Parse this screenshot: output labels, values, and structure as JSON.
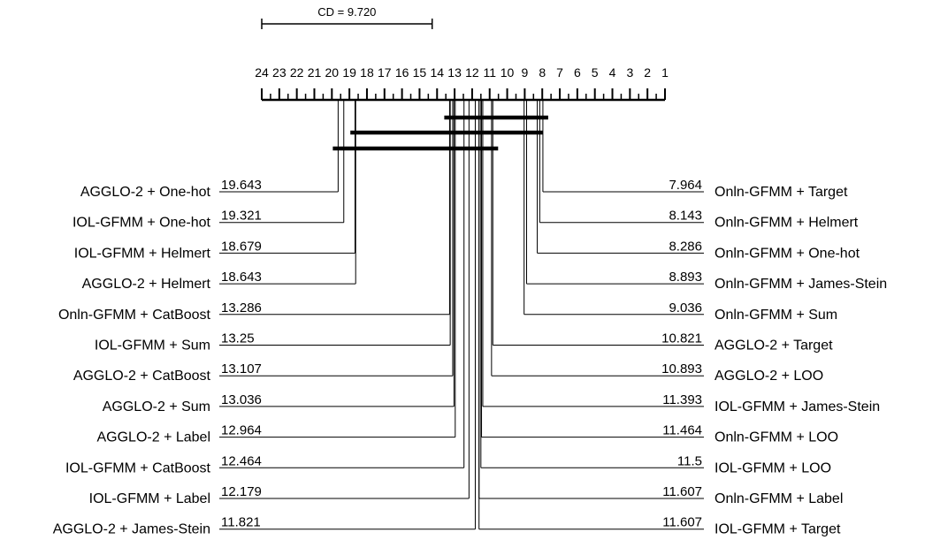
{
  "chart_data": {
    "type": "critical-difference",
    "cd_label": "CD = 9.720",
    "cd_value": 9.72,
    "axis": {
      "min": 1,
      "max": 24,
      "reversed": true,
      "ticks": [
        "24",
        "23",
        "22",
        "21",
        "20",
        "19",
        "18",
        "17",
        "16",
        "15",
        "14",
        "13",
        "12",
        "11",
        "10",
        "9",
        "8",
        "7",
        "6",
        "5",
        "4",
        "3",
        "2",
        "1"
      ]
    },
    "left_methods": [
      {
        "name": "AGGLO-2 + One-hot",
        "rank_label": "19.643",
        "rank": 19.643
      },
      {
        "name": "IOL-GFMM + One-hot",
        "rank_label": "19.321",
        "rank": 19.321
      },
      {
        "name": "IOL-GFMM + Helmert",
        "rank_label": "18.679",
        "rank": 18.679
      },
      {
        "name": "AGGLO-2 + Helmert",
        "rank_label": "18.643",
        "rank": 18.643
      },
      {
        "name": "Onln-GFMM + CatBoost",
        "rank_label": "13.286",
        "rank": 13.286
      },
      {
        "name": "IOL-GFMM + Sum",
        "rank_label": "13.25",
        "rank": 13.25
      },
      {
        "name": "AGGLO-2 + CatBoost",
        "rank_label": "13.107",
        "rank": 13.107
      },
      {
        "name": "AGGLO-2 + Sum",
        "rank_label": "13.036",
        "rank": 13.036
      },
      {
        "name": "AGGLO-2 + Label",
        "rank_label": "12.964",
        "rank": 12.964
      },
      {
        "name": "IOL-GFMM + CatBoost",
        "rank_label": "12.464",
        "rank": 12.464
      },
      {
        "name": "IOL-GFMM + Label",
        "rank_label": "12.179",
        "rank": 12.179
      },
      {
        "name": "AGGLO-2 + James-Stein",
        "rank_label": "11.821",
        "rank": 11.821
      }
    ],
    "right_methods": [
      {
        "name": "Onln-GFMM + Target",
        "rank_label": "7.964",
        "rank": 7.964
      },
      {
        "name": "Onln-GFMM + Helmert",
        "rank_label": "8.143",
        "rank": 8.143
      },
      {
        "name": "Onln-GFMM + One-hot",
        "rank_label": "8.286",
        "rank": 8.286
      },
      {
        "name": "Onln-GFMM + James-Stein",
        "rank_label": "8.893",
        "rank": 8.893
      },
      {
        "name": "Onln-GFMM + Sum",
        "rank_label": "9.036",
        "rank": 9.036
      },
      {
        "name": "AGGLO-2 + Target",
        "rank_label": "10.821",
        "rank": 10.821
      },
      {
        "name": "AGGLO-2 + LOO",
        "rank_label": "10.893",
        "rank": 10.893
      },
      {
        "name": "IOL-GFMM + James-Stein",
        "rank_label": "11.393",
        "rank": 11.393
      },
      {
        "name": "Onln-GFMM + LOO",
        "rank_label": "11.464",
        "rank": 11.464
      },
      {
        "name": "IOL-GFMM + LOO",
        "rank_label": "11.5",
        "rank": 11.5
      },
      {
        "name": "Onln-GFMM + Label",
        "rank_label": "11.607",
        "rank": 11.607
      },
      {
        "name": "IOL-GFMM + Target",
        "rank_label": "11.607",
        "rank": 11.607
      }
    ],
    "clique_bars": [
      {
        "from": 7.964,
        "to": 13.286
      },
      {
        "from": 8.286,
        "to": 18.643
      },
      {
        "from": 10.821,
        "to": 19.643
      }
    ]
  }
}
